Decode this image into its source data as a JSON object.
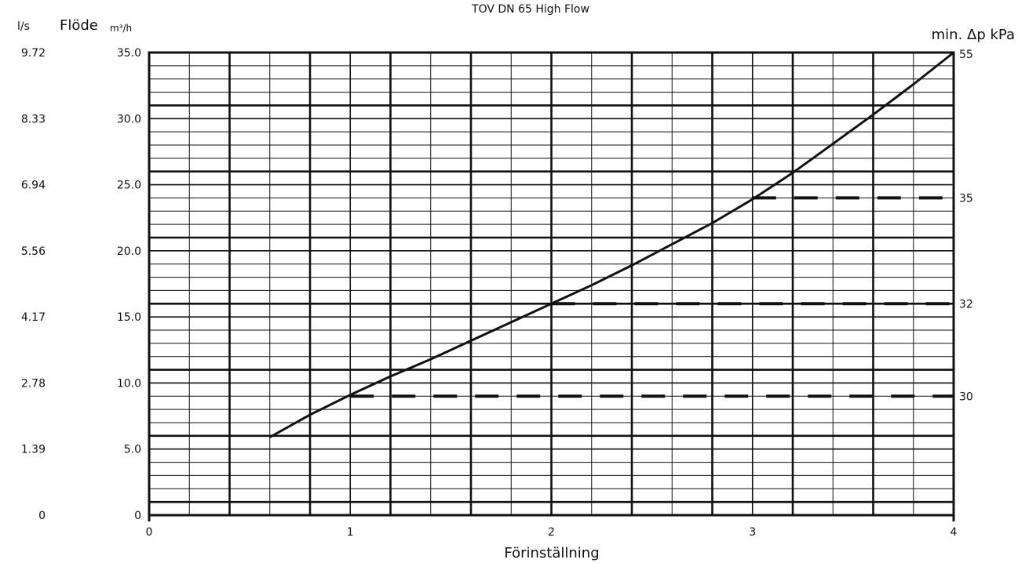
{
  "chart_data": {
    "type": "line",
    "title": "TOV DN 65 High Flow",
    "xlabel": "Förinställning",
    "ylabel": "Flöde",
    "ylabel_unit": "m³/h",
    "y2label": "l/s",
    "right_label": "min. Δp kPa",
    "xlim": [
      0,
      4
    ],
    "ylim": [
      0,
      35
    ],
    "x_ticks": [
      "0",
      "1",
      "2",
      "3",
      "4"
    ],
    "y_ticks": [
      "0",
      "5.0",
      "10.0",
      "15.0",
      "20.0",
      "25.0",
      "30.0",
      "35.0"
    ],
    "y2_ticks": [
      "0",
      "1.39",
      "2.78",
      "4.17",
      "5.56",
      "6.94",
      "8.33",
      "9.72"
    ],
    "series": [
      {
        "x": [
          0.6,
          0.8,
          1.0,
          1.2,
          1.4,
          1.6,
          1.8,
          2.0,
          2.2,
          2.4,
          2.6,
          2.8,
          3.0,
          3.2,
          3.4,
          3.6,
          3.8,
          4.0
        ],
        "y": [
          5.9,
          7.6,
          9.1,
          10.5,
          11.8,
          13.2,
          14.6,
          16.0,
          17.4,
          18.9,
          20.5,
          22.1,
          23.9,
          25.9,
          28.1,
          30.3,
          32.6,
          35.0
        ]
      }
    ],
    "reference_lines": [
      {
        "label": "30",
        "y": 9.0,
        "x_start": 1.0
      },
      {
        "label": "32",
        "y": 16.0,
        "x_start": 2.0
      },
      {
        "label": "35",
        "y": 24.0,
        "x_start": 3.0
      }
    ],
    "end_label": "55",
    "grid": true
  }
}
